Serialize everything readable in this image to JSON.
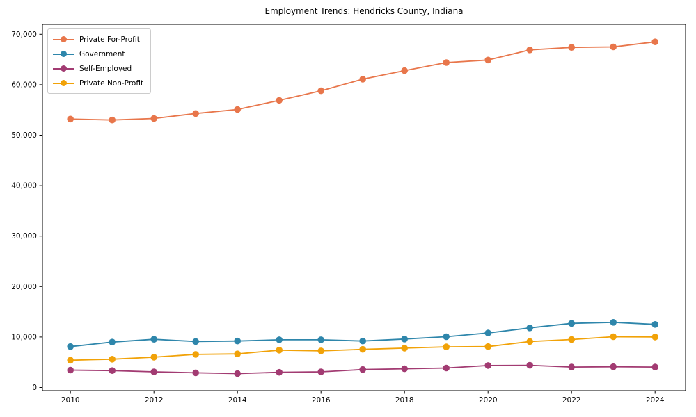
{
  "chart_data": {
    "type": "line",
    "title": "Employment Trends: Hendricks County, Indiana",
    "xlabel": "",
    "ylabel": "",
    "x": [
      2010,
      2011,
      2012,
      2013,
      2014,
      2015,
      2016,
      2017,
      2018,
      2019,
      2020,
      2021,
      2022,
      2023,
      2024
    ],
    "x_tick_labels": [
      "2010",
      "2012",
      "2014",
      "2016",
      "2018",
      "2020",
      "2022",
      "2024"
    ],
    "x_tick_years": [
      2010,
      2012,
      2014,
      2016,
      2018,
      2020,
      2022,
      2024
    ],
    "y_ticks": [
      0,
      10000,
      20000,
      30000,
      40000,
      50000,
      60000,
      70000
    ],
    "y_tick_labels": [
      "0",
      "10,000",
      "20,000",
      "30,000",
      "40,000",
      "50,000",
      "60,000",
      "70,000"
    ],
    "ylim": [
      -600,
      72000
    ],
    "grid": false,
    "legend_position": "upper left",
    "series": [
      {
        "name": "Private For-Profit",
        "color": "#E8764B",
        "values": [
          53200,
          53000,
          53300,
          54300,
          55100,
          56900,
          58800,
          61100,
          62800,
          64400,
          64900,
          66900,
          67400,
          67500,
          68500
        ]
      },
      {
        "name": "Government",
        "color": "#2E86AB",
        "values": [
          8100,
          9000,
          9550,
          9100,
          9200,
          9450,
          9450,
          9200,
          9600,
          10050,
          10800,
          11800,
          12700,
          12900,
          12500
        ]
      },
      {
        "name": "Self-Employed",
        "color": "#A23B72",
        "values": [
          3450,
          3350,
          3100,
          2900,
          2750,
          3000,
          3100,
          3550,
          3700,
          3850,
          4350,
          4400,
          4050,
          4100,
          4050
        ]
      },
      {
        "name": "Private Non-Profit",
        "color": "#F1A208",
        "values": [
          5400,
          5600,
          6000,
          6550,
          6650,
          7400,
          7250,
          7550,
          7800,
          8050,
          8100,
          9100,
          9500,
          10050,
          10000
        ]
      }
    ]
  }
}
